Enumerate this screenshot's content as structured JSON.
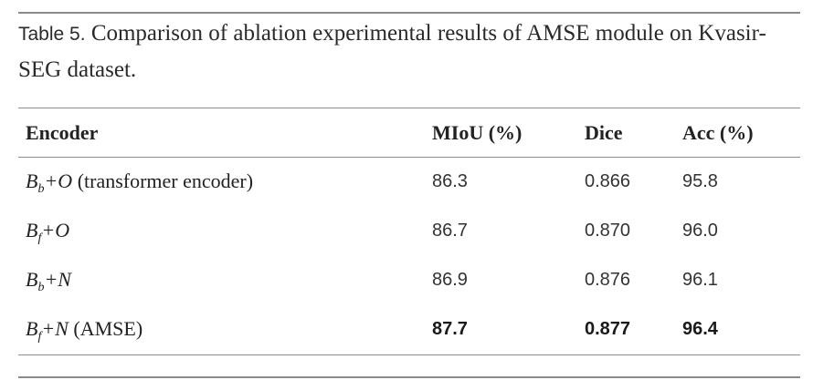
{
  "caption": {
    "label": "Table 5.",
    "text": "Comparison of ablation experimental results of AMSE module on Kvasir-SEG dataset."
  },
  "table": {
    "columns": [
      "Encoder",
      "MIoU (%)",
      "Dice",
      "Acc (%)"
    ],
    "rows": [
      {
        "encoder": {
          "base": "B",
          "sub": "b",
          "op": "+O",
          "note": "(transformer encoder)"
        },
        "miou": "86.3",
        "dice": "0.866",
        "acc": "95.8",
        "best": false
      },
      {
        "encoder": {
          "base": "B",
          "sub": "f",
          "op": "+O",
          "note": ""
        },
        "miou": "86.7",
        "dice": "0.870",
        "acc": "96.0",
        "best": false
      },
      {
        "encoder": {
          "base": "B",
          "sub": "b",
          "op": "+N",
          "note": ""
        },
        "miou": "86.9",
        "dice": "0.876",
        "acc": "96.1",
        "best": false
      },
      {
        "encoder": {
          "base": "B",
          "sub": "f",
          "op": "+N",
          "note": "(AMSE)"
        },
        "miou": "87.7",
        "dice": "0.877",
        "acc": "96.4",
        "best": true
      }
    ]
  }
}
